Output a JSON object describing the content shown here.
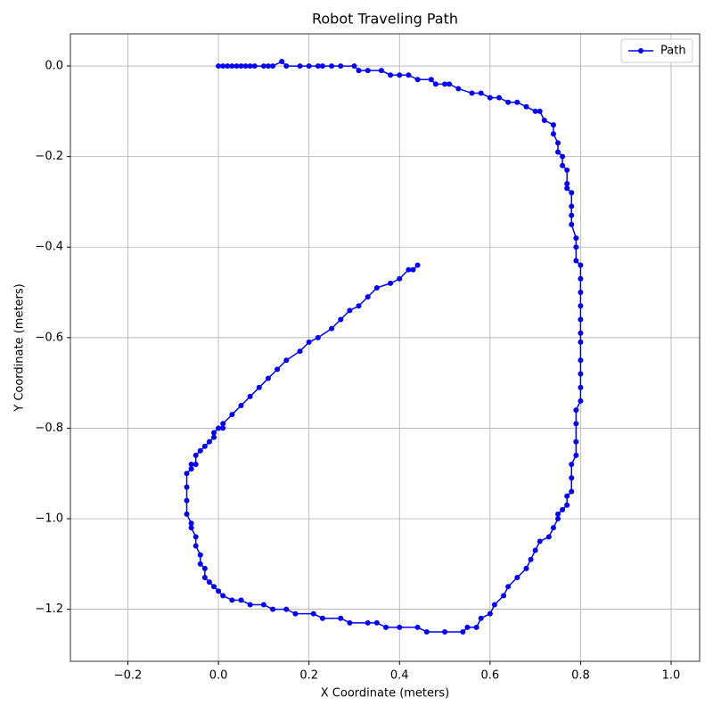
{
  "chart_data": {
    "type": "line",
    "title": "Robot Traveling Path",
    "x_label": "X Coordinate (meters)",
    "y_label": "Y Coordinate (meters)",
    "xlim": [
      -0.327,
      1.063
    ],
    "ylim": [
      -1.315,
      0.071
    ],
    "xticks": [
      {
        "value": -0.2,
        "label": "−0.2"
      },
      {
        "value": 0,
        "label": "0.0"
      },
      {
        "value": 0.2,
        "label": "0.2"
      },
      {
        "value": 0.4,
        "label": "0.4"
      },
      {
        "value": 0.6,
        "label": "0.6"
      },
      {
        "value": 0.8,
        "label": "0.8"
      },
      {
        "value": 1.0,
        "label": "1.0"
      }
    ],
    "yticks": [
      {
        "value": 0,
        "label": "0.0"
      },
      {
        "value": -0.2,
        "label": "−0.2"
      },
      {
        "value": -0.4,
        "label": "−0.4"
      },
      {
        "value": -0.6,
        "label": "−0.6"
      },
      {
        "value": -0.8,
        "label": "−0.8"
      },
      {
        "value": -1.0,
        "label": "−1.0"
      },
      {
        "value": -1.2,
        "label": "−1.2"
      }
    ],
    "grid": true,
    "legend": "upper right",
    "series": [
      {
        "name": "Path",
        "color": "#0000ff",
        "x": [
          0,
          0.01,
          0.02,
          0.03,
          0.04,
          0.05,
          0.06,
          0.07,
          0.08,
          0.1,
          0.11,
          0.12,
          0.14,
          0.15,
          0.18,
          0.2,
          0.22,
          0.23,
          0.25,
          0.27,
          0.3,
          0.31,
          0.33,
          0.36,
          0.38,
          0.4,
          0.42,
          0.44,
          0.47,
          0.48,
          0.5,
          0.51,
          0.53,
          0.56,
          0.58,
          0.6,
          0.62,
          0.64,
          0.66,
          0.68,
          0.7,
          0.71,
          0.72,
          0.74,
          0.74,
          0.75,
          0.75,
          0.76,
          0.76,
          0.77,
          0.77,
          0.77,
          0.78,
          0.78,
          0.78,
          0.78,
          0.79,
          0.79,
          0.79,
          0.8,
          0.8,
          0.8,
          0.8,
          0.8,
          0.8,
          0.8,
          0.8,
          0.8,
          0.8,
          0.8,
          0.79,
          0.79,
          0.79,
          0.79,
          0.78,
          0.78,
          0.78,
          0.77,
          0.77,
          0.76,
          0.75,
          0.75,
          0.74,
          0.73,
          0.71,
          0.7,
          0.69,
          0.68,
          0.66,
          0.64,
          0.63,
          0.61,
          0.6,
          0.58,
          0.57,
          0.55,
          0.54,
          0.5,
          0.46,
          0.44,
          0.4,
          0.37,
          0.35,
          0.33,
          0.29,
          0.27,
          0.23,
          0.21,
          0.17,
          0.15,
          0.12,
          0.1,
          0.07,
          0.05,
          0.03,
          0.01,
          0,
          -0.01,
          -0.02,
          -0.03,
          -0.03,
          -0.04,
          -0.04,
          -0.05,
          -0.05,
          -0.06,
          -0.06,
          -0.07,
          -0.07,
          -0.07,
          -0.07,
          -0.06,
          -0.06,
          -0.05,
          -0.05,
          -0.04,
          -0.03,
          -0.02,
          -0.01,
          -0.01,
          0,
          0.01,
          0.01,
          0.03,
          0.05,
          0.07,
          0.09,
          0.11,
          0.13,
          0.15,
          0.18,
          0.2,
          0.22,
          0.25,
          0.27,
          0.29,
          0.31,
          0.33,
          0.35,
          0.38,
          0.4,
          0.42,
          0.43,
          0.44
        ],
        "y": [
          0,
          0,
          0,
          0,
          0,
          0,
          0,
          0,
          0,
          0,
          0,
          0,
          0.01,
          0,
          0,
          0,
          0,
          0,
          0,
          0,
          0,
          -0.01,
          -0.01,
          -0.01,
          -0.02,
          -0.02,
          -0.02,
          -0.03,
          -0.03,
          -0.04,
          -0.04,
          -0.04,
          -0.05,
          -0.06,
          -0.06,
          -0.07,
          -0.07,
          -0.08,
          -0.08,
          -0.09,
          -0.1,
          -0.1,
          -0.12,
          -0.13,
          -0.15,
          -0.17,
          -0.19,
          -0.2,
          -0.22,
          -0.23,
          -0.26,
          -0.27,
          -0.28,
          -0.31,
          -0.33,
          -0.35,
          -0.38,
          -0.4,
          -0.43,
          -0.44,
          -0.47,
          -0.5,
          -0.53,
          -0.56,
          -0.59,
          -0.61,
          -0.65,
          -0.68,
          -0.71,
          -0.74,
          -0.76,
          -0.79,
          -0.83,
          -0.86,
          -0.88,
          -0.91,
          -0.94,
          -0.95,
          -0.97,
          -0.98,
          -0.99,
          -1.0,
          -1.02,
          -1.04,
          -1.05,
          -1.07,
          -1.09,
          -1.11,
          -1.13,
          -1.15,
          -1.17,
          -1.19,
          -1.21,
          -1.22,
          -1.24,
          -1.24,
          -1.25,
          -1.25,
          -1.25,
          -1.24,
          -1.24,
          -1.24,
          -1.23,
          -1.23,
          -1.23,
          -1.22,
          -1.22,
          -1.21,
          -1.21,
          -1.2,
          -1.2,
          -1.19,
          -1.19,
          -1.18,
          -1.18,
          -1.17,
          -1.16,
          -1.15,
          -1.14,
          -1.13,
          -1.11,
          -1.1,
          -1.08,
          -1.06,
          -1.04,
          -1.02,
          -1.01,
          -0.99,
          -0.96,
          -0.93,
          -0.9,
          -0.89,
          -0.88,
          -0.88,
          -0.86,
          -0.85,
          -0.84,
          -0.83,
          -0.82,
          -0.81,
          -0.8,
          -0.8,
          -0.79,
          -0.77,
          -0.75,
          -0.73,
          -0.71,
          -0.69,
          -0.67,
          -0.65,
          -0.63,
          -0.61,
          -0.6,
          -0.58,
          -0.56,
          -0.54,
          -0.53,
          -0.51,
          -0.49,
          -0.48,
          -0.47,
          -0.45,
          -0.45,
          -0.44
        ]
      }
    ]
  }
}
